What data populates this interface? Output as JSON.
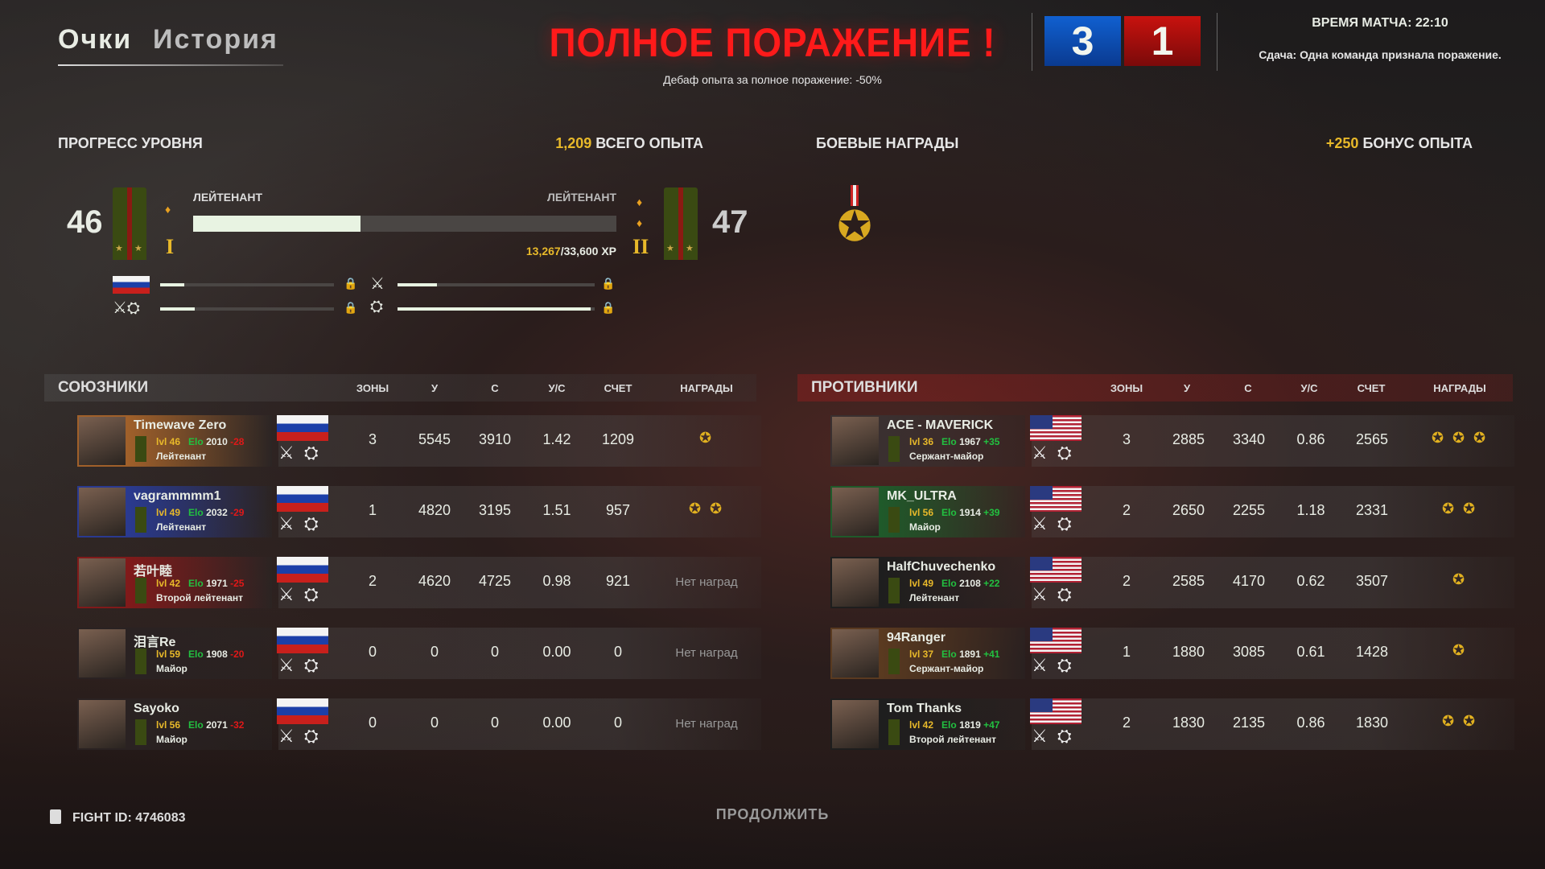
{
  "tabs": [
    "Очки",
    "История"
  ],
  "header": {
    "title": "ПОЛНОЕ ПОРАЖЕНИЕ !",
    "debuff": "Дебаф опыта за полное поражение: -50%",
    "score_allies": "3",
    "score_enemies": "1",
    "match_time": "ВРЕМЯ МАТЧА: 22:10",
    "surrender": "Сдача: Одна команда признала поражение."
  },
  "progress": {
    "title": "ПРОГРЕСС УРОВНЯ",
    "total_xp_value": "1,209",
    "total_xp_label": "ВСЕГО ОПЫТА",
    "level_current": "46",
    "level_next": "47",
    "rank_current": "ЛЕЙТЕНАНТ",
    "rank_next": "ЛЕЙТЕНАНТ",
    "grade_current": "I",
    "grade_next": "II",
    "xp_current": "13,267",
    "xp_total": "/33,600 XP",
    "fill_percent": 39.5,
    "sub_bars": [
      {
        "icon": "russia-flag-icon",
        "fill": 14
      },
      {
        "icon": "infantry-emblem-icon",
        "fill": 20
      },
      {
        "icon": "infantry-tank-emblem-icon",
        "fill": 20
      },
      {
        "icon": "tank-emblem-icon",
        "fill": 98
      }
    ]
  },
  "awards": {
    "title": "БОЕВЫЕ НАГРАДЫ",
    "bonus_value": "+250",
    "bonus_label": "БОНУС ОПЫТА"
  },
  "columns": [
    "ЗОНЫ",
    "У",
    "С",
    "У/С",
    "СЧЕТ",
    "НАГРАДЫ"
  ],
  "allies": {
    "title": "СОЮЗНИКИ",
    "rows": [
      {
        "name": "Timewave Zero",
        "lvl": "lvl 46",
        "elo": "2010",
        "delta": "-28",
        "rank": "Лейтенант",
        "zones": "3",
        "k": "5545",
        "d": "3910",
        "kd": "1.42",
        "score": "1209",
        "medals": 1,
        "color": "#a0602a"
      },
      {
        "name": "vagrammmm1",
        "lvl": "lvl 49",
        "elo": "2032",
        "delta": "-29",
        "rank": "Лейтенант",
        "zones": "1",
        "k": "4820",
        "d": "3195",
        "kd": "1.51",
        "score": "957",
        "medals": 2,
        "color": "#2a3a90"
      },
      {
        "name": "若叶睦",
        "lvl": "lvl 42",
        "elo": "1971",
        "delta": "-25",
        "rank": "Второй лейтенант",
        "zones": "2",
        "k": "4620",
        "d": "4725",
        "kd": "0.98",
        "score": "921",
        "no_awards": "Нет наград",
        "color": "#801a1a"
      },
      {
        "name": "泪言Re",
        "lvl": "lvl 59",
        "elo": "1908",
        "delta": "-20",
        "rank": "Майор",
        "zones": "0",
        "k": "0",
        "d": "0",
        "kd": "0.00",
        "score": "0",
        "no_awards": "Нет наград",
        "color": "#2a2222"
      },
      {
        "name": "Sayoko",
        "lvl": "lvl 56",
        "elo": "2071",
        "delta": "-32",
        "rank": "Майор",
        "zones": "0",
        "k": "0",
        "d": "0",
        "kd": "0.00",
        "score": "0",
        "no_awards": "Нет наград",
        "color": "#2a2222"
      }
    ]
  },
  "enemies": {
    "title": "ПРОТИВНИКИ",
    "rows": [
      {
        "name": "ACE - MAVERICK",
        "lvl": "lvl 36",
        "elo": "1967",
        "delta": "+35",
        "rank": "Сержант-майор",
        "zones": "3",
        "k": "2885",
        "d": "3340",
        "kd": "0.86",
        "score": "2565",
        "medals": 3,
        "color": "#3a3030"
      },
      {
        "name": "MK_ULTRA",
        "lvl": "lvl 56",
        "elo": "1914",
        "delta": "+39",
        "rank": "Майор",
        "zones": "2",
        "k": "2650",
        "d": "2255",
        "kd": "1.18",
        "score": "2331",
        "medals": 2,
        "color": "#1f5a2a"
      },
      {
        "name": "HalfChuvechenko",
        "lvl": "lvl 49",
        "elo": "2108",
        "delta": "+22",
        "rank": "Лейтенант",
        "zones": "2",
        "k": "2585",
        "d": "4170",
        "kd": "0.62",
        "score": "3507",
        "medals": 1,
        "color": "#1e1e1e"
      },
      {
        "name": "94Ranger",
        "lvl": "lvl 37",
        "elo": "1891",
        "delta": "+41",
        "rank": "Сержант-майор",
        "zones": "1",
        "k": "1880",
        "d": "3085",
        "kd": "0.61",
        "score": "1428",
        "medals": 1,
        "color": "#5a3a20"
      },
      {
        "name": "Tom Thanks",
        "lvl": "lvl 42",
        "elo": "1819",
        "delta": "+47",
        "rank": "Второй лейтенант",
        "zones": "2",
        "k": "1830",
        "d": "2135",
        "kd": "0.86",
        "score": "1830",
        "medals": 2,
        "color": "#1e1e1e"
      }
    ]
  },
  "elo_label": "Elo",
  "footer": {
    "fight_id": "FIGHT ID: 4746083",
    "continue": "ПРОДОЛЖИТЬ"
  },
  "colors": {
    "accent_gold": "#e8b92a",
    "defeat_red": "#ff1a1a",
    "allies_blue": "#0d4fb0",
    "enemies_red": "#a8100e",
    "positive": "#22c040",
    "negative": "#e01818"
  }
}
